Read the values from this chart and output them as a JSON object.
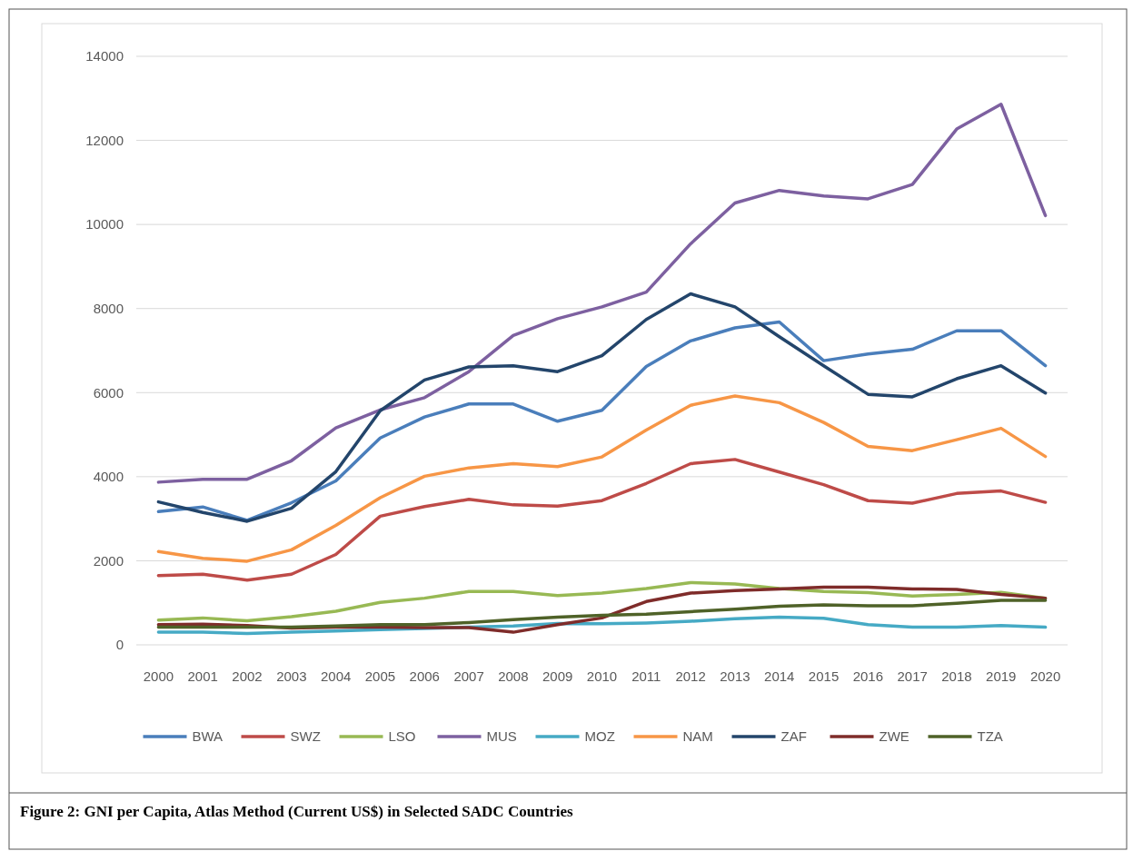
{
  "chart_data": {
    "type": "line",
    "categories": [
      "2000",
      "2001",
      "2002",
      "2003",
      "2004",
      "2005",
      "2006",
      "2007",
      "2008",
      "2009",
      "2010",
      "2011",
      "2012",
      "2013",
      "2014",
      "2015",
      "2016",
      "2017",
      "2018",
      "2019",
      "2020"
    ],
    "series": [
      {
        "name": "BWA",
        "color": "#4a7ebb",
        "values": [
          3170,
          3280,
          2960,
          3380,
          3900,
          4920,
          5420,
          5730,
          5730,
          5320,
          5580,
          6620,
          7230,
          7540,
          7680,
          6760,
          6920,
          7030,
          7470,
          7470,
          6640
        ]
      },
      {
        "name": "SWZ",
        "color": "#be4b48",
        "values": [
          1650,
          1680,
          1540,
          1680,
          2150,
          3060,
          3290,
          3460,
          3330,
          3300,
          3430,
          3840,
          4310,
          4410,
          4110,
          3810,
          3430,
          3370,
          3600,
          3660,
          3390
        ]
      },
      {
        "name": "LSO",
        "color": "#98b954",
        "values": [
          590,
          640,
          570,
          670,
          800,
          1010,
          1110,
          1270,
          1270,
          1170,
          1230,
          1340,
          1480,
          1450,
          1340,
          1270,
          1240,
          1160,
          1200,
          1250,
          1110
        ]
      },
      {
        "name": "MUS",
        "color": "#7d60a0",
        "values": [
          3870,
          3940,
          3940,
          4380,
          5160,
          5590,
          5880,
          6500,
          7360,
          7760,
          8040,
          8390,
          9540,
          10510,
          10810,
          10680,
          10610,
          10950,
          12270,
          12860,
          10210
        ]
      },
      {
        "name": "MOZ",
        "color": "#46aac5",
        "values": [
          300,
          300,
          270,
          300,
          330,
          360,
          390,
          420,
          450,
          510,
          500,
          520,
          560,
          620,
          660,
          630,
          480,
          420,
          420,
          460,
          420
        ]
      },
      {
        "name": "NAM",
        "color": "#f79646",
        "values": [
          2220,
          2060,
          1990,
          2260,
          2840,
          3500,
          4010,
          4210,
          4310,
          4240,
          4470,
          5110,
          5700,
          5920,
          5760,
          5290,
          4720,
          4620,
          4880,
          5150,
          4480
        ]
      },
      {
        "name": "ZAF",
        "color": "#23456b",
        "values": [
          3400,
          3150,
          2940,
          3250,
          4120,
          5570,
          6300,
          6610,
          6640,
          6500,
          6880,
          7740,
          8350,
          8040,
          7330,
          6640,
          5960,
          5900,
          6330,
          6640,
          5990
        ]
      },
      {
        "name": "ZWE",
        "color": "#7f2c2a",
        "values": [
          480,
          490,
          460,
          400,
          420,
          420,
          410,
          410,
          300,
          480,
          640,
          1030,
          1230,
          1290,
          1330,
          1370,
          1370,
          1330,
          1320,
          1200,
          1110
        ]
      },
      {
        "name": "TZA",
        "color": "#4f6228",
        "values": [
          420,
          420,
          420,
          420,
          450,
          480,
          480,
          530,
          600,
          660,
          700,
          730,
          790,
          850,
          920,
          950,
          930,
          930,
          990,
          1060,
          1060
        ]
      }
    ],
    "ylim": [
      0,
      14000
    ],
    "yticks": [
      0,
      2000,
      4000,
      6000,
      8000,
      10000,
      12000,
      14000
    ],
    "grid": "y",
    "legend": "bottom",
    "marker": "none",
    "line_style": "solid",
    "annotations": [
      "Figure 2: GNI per Capita, Atlas Method (Current US$) in Selected SADC Countries"
    ]
  }
}
